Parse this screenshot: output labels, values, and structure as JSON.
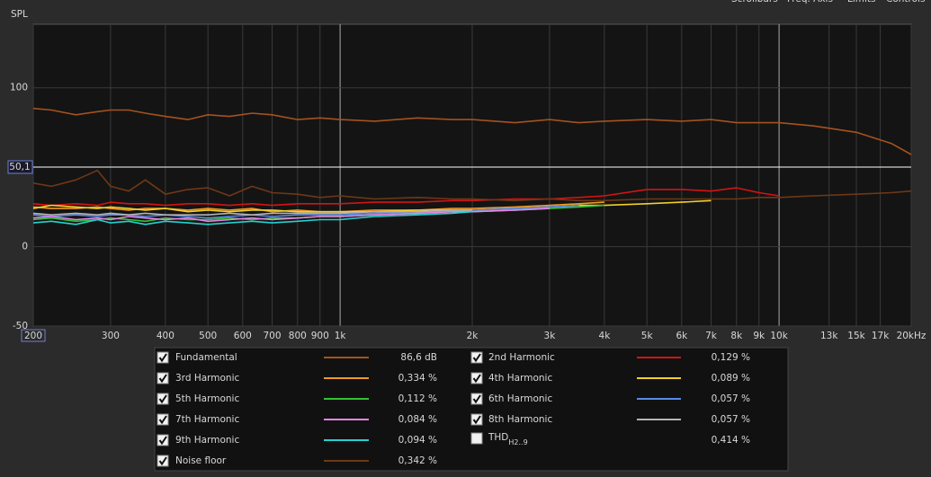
{
  "chart_data": {
    "type": "line",
    "y_label": "SPL",
    "toolbar": [
      "Scrollbars",
      "Freq. Axis",
      "Limits",
      "Controls"
    ],
    "log_x": true,
    "grid": true,
    "xlim": [
      200,
      20000
    ],
    "ylim": [
      -50,
      140
    ],
    "xticks": [
      200,
      300,
      400,
      500,
      600,
      700,
      800,
      900,
      {
        "value": 1000,
        "label": "1k"
      },
      {
        "value": 2000,
        "label": "2k"
      },
      {
        "value": 3000,
        "label": "3k"
      },
      {
        "value": 4000,
        "label": "4k"
      },
      {
        "value": 5000,
        "label": "5k"
      },
      {
        "value": 6000,
        "label": "6k"
      },
      {
        "value": 7000,
        "label": "7k"
      },
      {
        "value": 8000,
        "label": "8k"
      },
      {
        "value": 9000,
        "label": "9k"
      },
      {
        "value": 10000,
        "label": "10k"
      },
      {
        "value": 13000,
        "label": "13k"
      },
      {
        "value": 15000,
        "label": "15k"
      },
      {
        "value": 17000,
        "label": "17k"
      },
      {
        "value": 20000,
        "label": "20kHz"
      }
    ],
    "yticks": [
      -50,
      0,
      100
    ],
    "cursor": {
      "value": 50.1,
      "label": "50,1"
    },
    "x": [
      200,
      220,
      250,
      280,
      300,
      330,
      360,
      400,
      450,
      500,
      560,
      630,
      700,
      800,
      900,
      1000,
      1200,
      1500,
      1800,
      2000,
      2500,
      3000,
      3500,
      4000,
      5000,
      6000,
      7000,
      8000,
      9000,
      10000,
      12000,
      15000,
      18000,
      20000
    ],
    "series": [
      {
        "name": "Fundamental",
        "color": "#a5521f",
        "readout": "86,6 dB",
        "checked": true,
        "values": [
          87,
          86,
          83,
          85,
          86,
          86,
          84,
          82,
          80,
          83,
          82,
          84,
          83,
          80,
          81,
          80,
          79,
          81,
          80,
          80,
          78,
          80,
          78,
          79,
          80,
          79,
          80,
          78,
          78,
          78,
          76,
          72,
          65,
          58
        ]
      },
      {
        "name": "2nd Harmonic",
        "color": "#d41414",
        "readout": "0,129 %",
        "checked": true,
        "values": [
          27,
          26,
          27,
          26,
          28,
          27,
          27,
          26,
          27,
          27,
          26,
          27,
          26,
          27,
          27,
          27,
          28,
          28,
          29,
          29,
          30,
          30,
          31,
          32,
          36,
          36,
          35,
          37,
          34,
          32,
          null,
          null,
          null,
          null
        ]
      },
      {
        "name": "3rd Harmonic",
        "color": "#f09a24",
        "readout": "0,334 %",
        "checked": true,
        "values": [
          25,
          24,
          24,
          25,
          24,
          23,
          24,
          24,
          23,
          24,
          23,
          24,
          22,
          23,
          22,
          22,
          23,
          23,
          24,
          24,
          25,
          26,
          27,
          28,
          null,
          null,
          null,
          null,
          null,
          null,
          null,
          null,
          null,
          null
        ]
      },
      {
        "name": "4th Harmonic",
        "color": "#f2d02a",
        "readout": "0,089 %",
        "checked": true,
        "values": [
          24,
          26,
          25,
          24,
          25,
          24,
          23,
          24,
          22,
          23,
          22,
          23,
          23,
          22,
          22,
          22,
          22,
          23,
          23,
          23,
          24,
          25,
          26,
          26,
          27,
          28,
          29,
          null,
          null,
          null,
          null,
          null,
          null,
          null
        ]
      },
      {
        "name": "5th Harmonic",
        "color": "#34c234",
        "readout": "0,112 %",
        "checked": true,
        "values": [
          17,
          18,
          16,
          17,
          18,
          17,
          16,
          18,
          17,
          17,
          18,
          17,
          18,
          18,
          19,
          19,
          20,
          21,
          22,
          22,
          23,
          24,
          25,
          26,
          null,
          null,
          null,
          null,
          null,
          null,
          null,
          null,
          null,
          null
        ]
      },
      {
        "name": "6th Harmonic",
        "color": "#5a8ae6",
        "readout": "0,057 %",
        "checked": true,
        "values": [
          20,
          19,
          20,
          19,
          20,
          20,
          19,
          20,
          19,
          18,
          19,
          20,
          19,
          20,
          20,
          20,
          21,
          22,
          23,
          23,
          24,
          25,
          26,
          null,
          null,
          null,
          null,
          null,
          null,
          null,
          null,
          null,
          null,
          null
        ]
      },
      {
        "name": "7th Harmonic",
        "color": "#e684e6",
        "readout": "0,084 %",
        "checked": true,
        "values": [
          18,
          19,
          17,
          18,
          17,
          19,
          18,
          17,
          18,
          16,
          17,
          18,
          17,
          18,
          19,
          19,
          20,
          21,
          22,
          22,
          23,
          24,
          null,
          null,
          null,
          null,
          null,
          null,
          null,
          null,
          null,
          null,
          null,
          null
        ]
      },
      {
        "name": "8th Harmonic",
        "color": "#b4b4b4",
        "readout": "0,057 %",
        "checked": true,
        "values": [
          21,
          20,
          21,
          20,
          21,
          20,
          21,
          20,
          20,
          20,
          21,
          20,
          21,
          21,
          21,
          21,
          22,
          22,
          23,
          23,
          null,
          null,
          null,
          null,
          null,
          null,
          null,
          null,
          null,
          null,
          null,
          null,
          null,
          null
        ]
      },
      {
        "name": "9th Harmonic",
        "color": "#22d2d2",
        "readout": "0,094 %",
        "checked": true,
        "values": [
          15,
          16,
          14,
          17,
          15,
          16,
          14,
          16,
          15,
          14,
          15,
          16,
          15,
          16,
          17,
          17,
          19,
          20,
          21,
          22,
          null,
          null,
          null,
          null,
          null,
          null,
          null,
          null,
          null,
          null,
          null,
          null,
          null,
          null
        ]
      },
      {
        "name": "Noise floor",
        "color": "#6e3816",
        "readout": "0,342 %",
        "checked": true,
        "values": [
          40,
          38,
          42,
          48,
          38,
          35,
          42,
          33,
          36,
          37,
          32,
          38,
          34,
          33,
          31,
          32,
          30,
          31,
          30,
          30,
          29,
          30,
          29,
          29,
          30,
          30,
          30,
          30,
          31,
          31,
          32,
          33,
          34,
          35
        ]
      }
    ],
    "thd": {
      "name": "THD",
      "subscript": "H2..9",
      "readout": "0,414 %",
      "checked": false
    }
  }
}
